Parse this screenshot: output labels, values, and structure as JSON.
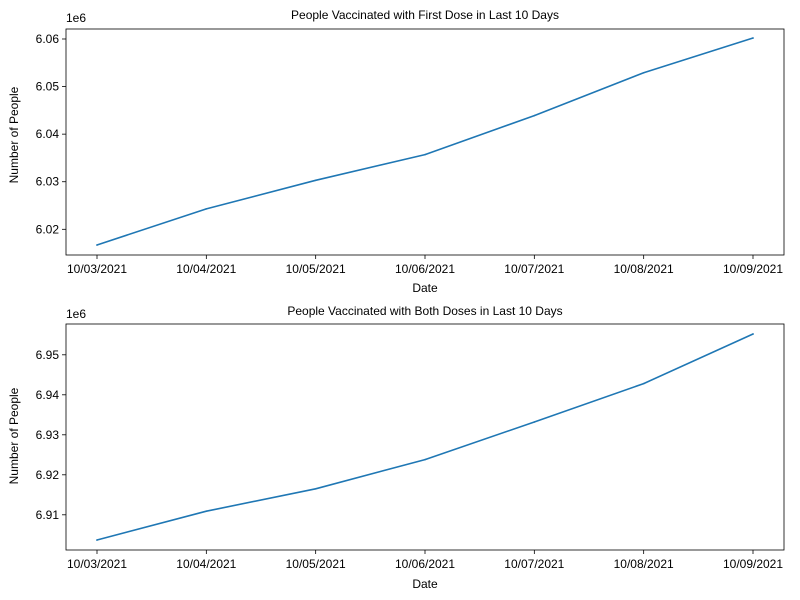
{
  "chart_data": [
    {
      "type": "line",
      "title": "People Vaccinated with First Dose in Last 10 Days",
      "xlabel": "Date",
      "ylabel": "Number of People",
      "offset_label": "1e6",
      "x": [
        "10/03/2021",
        "10/04/2021",
        "10/05/2021",
        "10/06/2021",
        "10/07/2021",
        "10/08/2021",
        "10/09/2021"
      ],
      "yticks": [
        "6.02",
        "6.03",
        "6.04",
        "6.05",
        "6.06"
      ],
      "ytick_values": [
        6.02,
        6.03,
        6.04,
        6.05,
        6.06
      ],
      "ylim": [
        6.0146,
        6.0621
      ],
      "values": [
        6.0167,
        6.0243,
        6.0303,
        6.0357,
        6.0439,
        6.0529,
        6.0602
      ],
      "grid": false,
      "color": "#1f77b4"
    },
    {
      "type": "line",
      "title": "People Vaccinated with Both Doses in Last 10 Days",
      "xlabel": "Date",
      "ylabel": "Number of People",
      "offset_label": "1e6",
      "x": [
        "10/03/2021",
        "10/04/2021",
        "10/05/2021",
        "10/06/2021",
        "10/07/2021",
        "10/08/2021",
        "10/09/2021"
      ],
      "yticks": [
        "6.91",
        "6.92",
        "6.93",
        "6.94",
        "6.95"
      ],
      "ytick_values": [
        6.91,
        6.92,
        6.93,
        6.94,
        6.95
      ],
      "ylim": [
        6.9012,
        6.9577
      ],
      "values": [
        6.9037,
        6.9109,
        6.9165,
        6.9238,
        6.9332,
        6.9428,
        6.9552
      ],
      "grid": false,
      "color": "#1f77b4"
    }
  ]
}
